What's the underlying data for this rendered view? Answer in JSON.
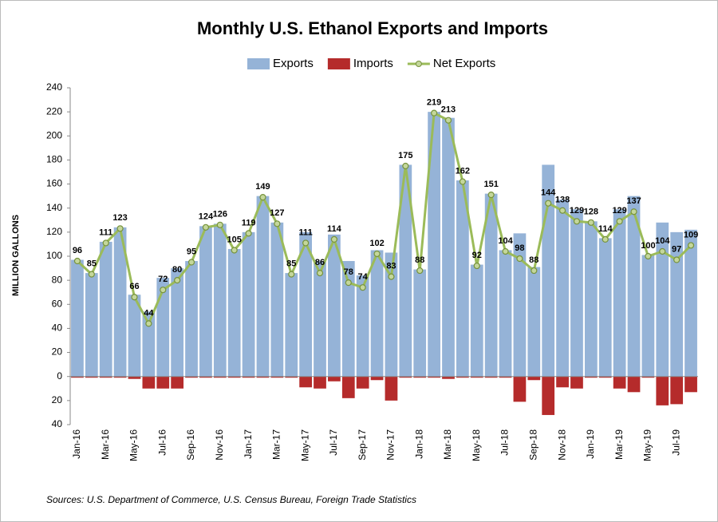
{
  "chart_data": {
    "type": "bar_line",
    "title": "Monthly U.S. Ethanol Exports and Imports",
    "y_axis_label": "MILLION GALLONS",
    "source": "Sources: U.S. Department of Commerce, U.S. Census Bureau, Foreign Trade Statistics",
    "categories": [
      "Jan-16",
      null,
      "Mar-16",
      null,
      "May-16",
      null,
      "Jul-16",
      null,
      "Sep-16",
      null,
      "Nov-16",
      null,
      "Jan-17",
      null,
      "Mar-17",
      null,
      "May-17",
      null,
      "Jul-17",
      null,
      "Sep-17",
      null,
      "Nov-17",
      null,
      "Jan-18",
      null,
      "Mar-18",
      null,
      "May-18",
      null,
      "Jul-18",
      null,
      "Sep-18",
      null,
      "Nov-18",
      null,
      "Jan-19",
      null,
      "Mar-19",
      null,
      "May-19",
      null,
      "Jul-19",
      null
    ],
    "series": [
      {
        "name": "Exports",
        "kind": "bar",
        "color": "#95b3d7",
        "values": [
          97,
          86,
          112,
          124,
          68,
          54,
          82,
          90,
          96,
          125,
          127,
          106,
          120,
          150,
          128,
          86,
          120,
          96,
          118,
          96,
          84,
          105,
          103,
          176,
          89,
          220,
          215,
          163,
          93,
          152,
          105,
          119,
          91,
          176,
          147,
          139,
          129,
          115,
          139,
          150,
          101,
          128,
          120,
          122
        ]
      },
      {
        "name": "Imports",
        "kind": "bar",
        "color": "#b52b2b",
        "values": [
          -1,
          -1,
          -1,
          -1,
          -2,
          -10,
          -10,
          -10,
          -1,
          -1,
          -1,
          -1,
          -1,
          -1,
          -1,
          -1,
          -9,
          -10,
          -4,
          -18,
          -10,
          -3,
          -20,
          -1,
          -1,
          -1,
          -2,
          -1,
          -1,
          -1,
          -1,
          -21,
          -3,
          -32,
          -9,
          -10,
          -1,
          -1,
          -10,
          -13,
          -1,
          -24,
          -23,
          -13
        ]
      },
      {
        "name": "Net Exports",
        "kind": "line",
        "color": "#9bbb59",
        "values": [
          96,
          85,
          111,
          123,
          66,
          44,
          72,
          80,
          95,
          124,
          126,
          105,
          119,
          149,
          127,
          85,
          111,
          86,
          114,
          78,
          74,
          102,
          83,
          175,
          88,
          219,
          213,
          162,
          92,
          151,
          104,
          98,
          88,
          144,
          138,
          129,
          128,
          114,
          129,
          137,
          100,
          104,
          97,
          109
        ]
      }
    ],
    "ylim": [
      -40,
      240
    ],
    "yticks": [
      {
        "value": -40,
        "label": "40"
      },
      {
        "value": -20,
        "label": "20"
      },
      0,
      20,
      40,
      60,
      80,
      100,
      120,
      140,
      160,
      180,
      200,
      220,
      240
    ],
    "grid": false,
    "legend": "top"
  }
}
